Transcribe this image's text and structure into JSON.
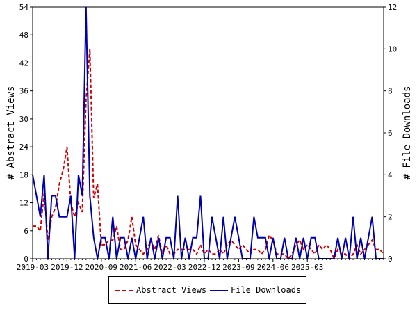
{
  "chart_data": {
    "type": "line",
    "title": "",
    "ylabel": "# Abstract Views",
    "y2label": "# File Downloads",
    "ylim": [
      0,
      54
    ],
    "y2lim": [
      0,
      12
    ],
    "yticks": [
      "0",
      "6",
      "12",
      "18",
      "24",
      "30",
      "36",
      "42",
      "48",
      "54"
    ],
    "y2ticks": [
      "0",
      "2",
      "4",
      "6",
      "8",
      "10",
      "12"
    ],
    "xticks": [
      "2019-03",
      "2019-12",
      "2020-09",
      "2021-06",
      "2022-03",
      "2022-12",
      "2023-09",
      "2024-06",
      "2025-03"
    ],
    "grid": false,
    "legend_placement": "bottom",
    "colors": {
      "abstract_views": "#cc0000",
      "file_downloads": "#0000aa"
    },
    "series": [
      {
        "name": "Abstract Views",
        "axis": "left",
        "style": "dashed",
        "values": [
          7,
          7,
          6,
          14,
          4,
          9,
          11,
          16,
          19,
          24,
          12,
          9,
          12,
          10,
          34,
          45,
          13,
          16,
          3,
          3,
          4,
          4,
          7,
          2,
          2,
          4,
          9,
          3,
          2,
          1,
          2,
          4,
          2,
          5,
          1,
          3,
          1,
          1,
          2,
          2,
          2,
          2,
          2,
          1,
          3,
          1,
          2,
          1,
          1,
          2,
          1,
          3,
          4,
          3,
          2,
          3,
          2,
          1,
          2,
          2,
          1,
          2,
          5,
          4,
          1,
          1,
          1,
          0,
          1,
          3,
          4,
          2,
          3,
          2,
          1,
          3,
          2,
          3,
          2,
          0,
          2,
          1,
          1,
          0,
          1,
          3,
          1,
          2,
          3,
          4,
          2,
          2,
          1
        ]
      },
      {
        "name": "File Downloads",
        "axis": "right",
        "style": "solid",
        "values": [
          4,
          3,
          2,
          4,
          0,
          3,
          3,
          2,
          2,
          2,
          3,
          0,
          4,
          3,
          12,
          3,
          1,
          0,
          1,
          1,
          0,
          2,
          0,
          1,
          1,
          0,
          1,
          0,
          1,
          2,
          0,
          1,
          0,
          1,
          0,
          1,
          1,
          0,
          3,
          0,
          1,
          0,
          1,
          1,
          3,
          0,
          0,
          2,
          1,
          0,
          2,
          0,
          1,
          2,
          1,
          0,
          0,
          0,
          2,
          1,
          1,
          1,
          0,
          1,
          0,
          0,
          1,
          0,
          0,
          1,
          0,
          1,
          0,
          1,
          1,
          0,
          0,
          0,
          0,
          0,
          1,
          0,
          1,
          0,
          2,
          0,
          1,
          0,
          1,
          2,
          0,
          0,
          0
        ]
      }
    ]
  }
}
